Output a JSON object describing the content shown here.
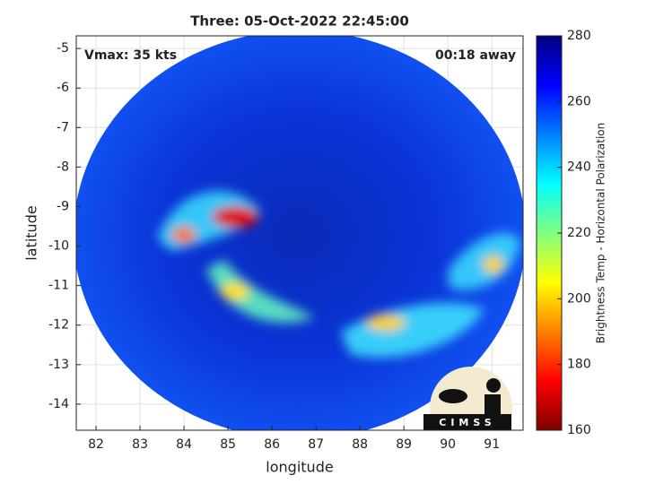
{
  "chart_data": {
    "type": "map",
    "title": "Three: 05-Oct-2022 22:45:00",
    "xlabel": "longitude",
    "ylabel": "latitude",
    "annotations": [
      "Vmax: 35 kts",
      "00:18 away"
    ],
    "logo": "CIMSS",
    "xlim": [
      81.55,
      91.71
    ],
    "xticks": [
      82,
      83,
      84,
      85,
      86,
      87,
      88,
      89,
      90,
      91
    ],
    "ylim": [
      -14.66,
      -4.68
    ],
    "yticks": [
      -14,
      -13,
      -12,
      -11,
      -10,
      -9,
      -8,
      -7,
      -6,
      -5
    ],
    "grid": true,
    "colorbar": {
      "label": "Brightness Temp - Horizontal Polarization",
      "lim": [
        160,
        280
      ],
      "ticks": [
        160,
        180,
        200,
        220,
        240,
        260,
        280
      ],
      "colormap": [
        "#800000",
        "#ff0000",
        "#ff8000",
        "#ffff00",
        "#80ff80",
        "#00ffff",
        "#0080ff",
        "#0000ff",
        "#000080"
      ]
    }
  }
}
